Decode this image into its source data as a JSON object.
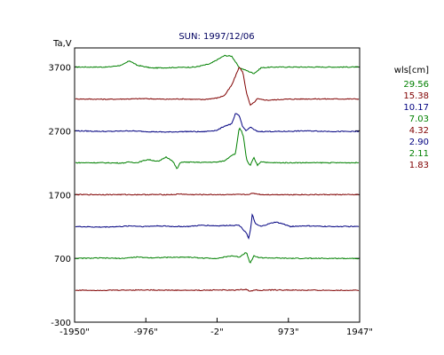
{
  "chart_data": {
    "type": "line",
    "title": "SUN: 1997/12/06",
    "ylabel": "Ta,V",
    "xlabel": "",
    "xlim": [
      -1950,
      1947
    ],
    "ylim": [
      -300,
      4000
    ],
    "x_ticks": [
      -1950,
      -976,
      -2,
      973,
      1947
    ],
    "x_tick_labels": [
      "-1950\"",
      "-976\"",
      "-2\"",
      "973\"",
      "1947\""
    ],
    "y_ticks": [
      3700,
      2700,
      1700,
      700,
      -300
    ],
    "y_tick_labels": [
      "3700",
      "2700",
      "1700",
      "700",
      "-300"
    ],
    "grid": false,
    "legend": {
      "title": "wls[cm]",
      "placement": "right",
      "entries": [
        {
          "label": "29.56",
          "color": "#008000"
        },
        {
          "label": "15.38",
          "color": "#800000"
        },
        {
          "label": "10.17",
          "color": "#000080"
        },
        {
          "label": "7.03",
          "color": "#008000"
        },
        {
          "label": "4.32",
          "color": "#800000"
        },
        {
          "label": "2.90",
          "color": "#000080"
        },
        {
          "label": "2.11",
          "color": "#008000"
        },
        {
          "label": "1.83",
          "color": "#800000"
        }
      ]
    },
    "series": [
      {
        "wls": "29.56",
        "color": "#008000",
        "x": [
          -1950,
          -1500,
          -1300,
          -1200,
          -1100,
          -900,
          -700,
          -300,
          -100,
          100,
          200,
          300,
          500,
          550,
          600,
          800,
          1000,
          1300,
          1600,
          1947
        ],
        "y": [
          3700,
          3700,
          3730,
          3800,
          3730,
          3685,
          3690,
          3700,
          3750,
          3880,
          3870,
          3690,
          3600,
          3640,
          3690,
          3700,
          3700,
          3700,
          3700,
          3700
        ]
      },
      {
        "wls": "15.38",
        "color": "#800000",
        "x": [
          -1950,
          -1500,
          -1200,
          -1000,
          -700,
          -500,
          -200,
          0,
          100,
          200,
          300,
          350,
          400,
          450,
          500,
          550,
          600,
          700,
          900,
          1200,
          1500,
          1947
        ],
        "y": [
          3200,
          3195,
          3200,
          3205,
          3195,
          3200,
          3190,
          3215,
          3255,
          3420,
          3700,
          3620,
          3300,
          3100,
          3140,
          3205,
          3190,
          3180,
          3195,
          3200,
          3200,
          3200
        ]
      },
      {
        "wls": "10.17",
        "color": "#000080",
        "x": [
          -1950,
          -1500,
          -1200,
          -1000,
          -700,
          -400,
          -200,
          0,
          100,
          200,
          250,
          300,
          350,
          400,
          450,
          500,
          550,
          700,
          900,
          1200,
          1600,
          1947
        ],
        "y": [
          2700,
          2690,
          2700,
          2690,
          2680,
          2690,
          2685,
          2710,
          2775,
          2810,
          2970,
          2940,
          2760,
          2700,
          2760,
          2720,
          2690,
          2690,
          2690,
          2700,
          2690,
          2690
        ]
      },
      {
        "wls": "7.03",
        "color": "#008000",
        "x": [
          -1950,
          -1600,
          -1300,
          -1200,
          -1100,
          -950,
          -800,
          -700,
          -650,
          -600,
          -550,
          -500,
          -200,
          0,
          100,
          200,
          250,
          300,
          330,
          360,
          400,
          450,
          500,
          550,
          600,
          700,
          900,
          1300,
          1947
        ],
        "y": [
          2200,
          2200,
          2195,
          2210,
          2200,
          2250,
          2220,
          2290,
          2260,
          2210,
          2100,
          2210,
          2205,
          2210,
          2230,
          2320,
          2340,
          2750,
          2700,
          2600,
          2250,
          2150,
          2280,
          2160,
          2220,
          2200,
          2200,
          2200,
          2200
        ]
      },
      {
        "wls": "4.32",
        "color": "#800000",
        "x": [
          -1950,
          -1500,
          -1000,
          -600,
          -500,
          -400,
          0,
          400,
          500,
          600,
          1000,
          1500,
          1947
        ],
        "y": [
          1700,
          1700,
          1700,
          1700,
          1710,
          1700,
          1700,
          1700,
          1720,
          1700,
          1700,
          1700,
          1700
        ]
      },
      {
        "wls": "2.90",
        "color": "#000080",
        "x": [
          -1950,
          -1600,
          -1300,
          -1200,
          -1000,
          -800,
          -600,
          -400,
          -200,
          0,
          200,
          300,
          400,
          430,
          460,
          480,
          520,
          600,
          700,
          800,
          900,
          1000,
          1200,
          1500,
          1947
        ],
        "y": [
          1200,
          1190,
          1200,
          1210,
          1200,
          1210,
          1200,
          1200,
          1220,
          1210,
          1220,
          1220,
          1100,
          1010,
          1180,
          1400,
          1240,
          1200,
          1240,
          1270,
          1240,
          1200,
          1210,
          1200,
          1200
        ]
      },
      {
        "wls": "2.11",
        "color": "#008000",
        "x": [
          -1950,
          -1600,
          -1300,
          -1100,
          -900,
          -700,
          -400,
          -200,
          0,
          200,
          300,
          400,
          450,
          500,
          550,
          600,
          800,
          1000,
          1300,
          1600,
          1947
        ],
        "y": [
          700,
          705,
          700,
          720,
          710,
          715,
          720,
          705,
          700,
          740,
          720,
          800,
          620,
          740,
          720,
          710,
          705,
          700,
          700,
          700,
          700
        ]
      },
      {
        "wls": "1.83",
        "color": "#800000",
        "x": [
          -1950,
          -1500,
          -1000,
          -500,
          -200,
          0,
          200,
          400,
          450,
          500,
          600,
          800,
          1200,
          1600,
          1947
        ],
        "y": [
          200,
          200,
          205,
          200,
          200,
          205,
          200,
          215,
          180,
          205,
          200,
          205,
          200,
          200,
          200
        ]
      }
    ]
  }
}
